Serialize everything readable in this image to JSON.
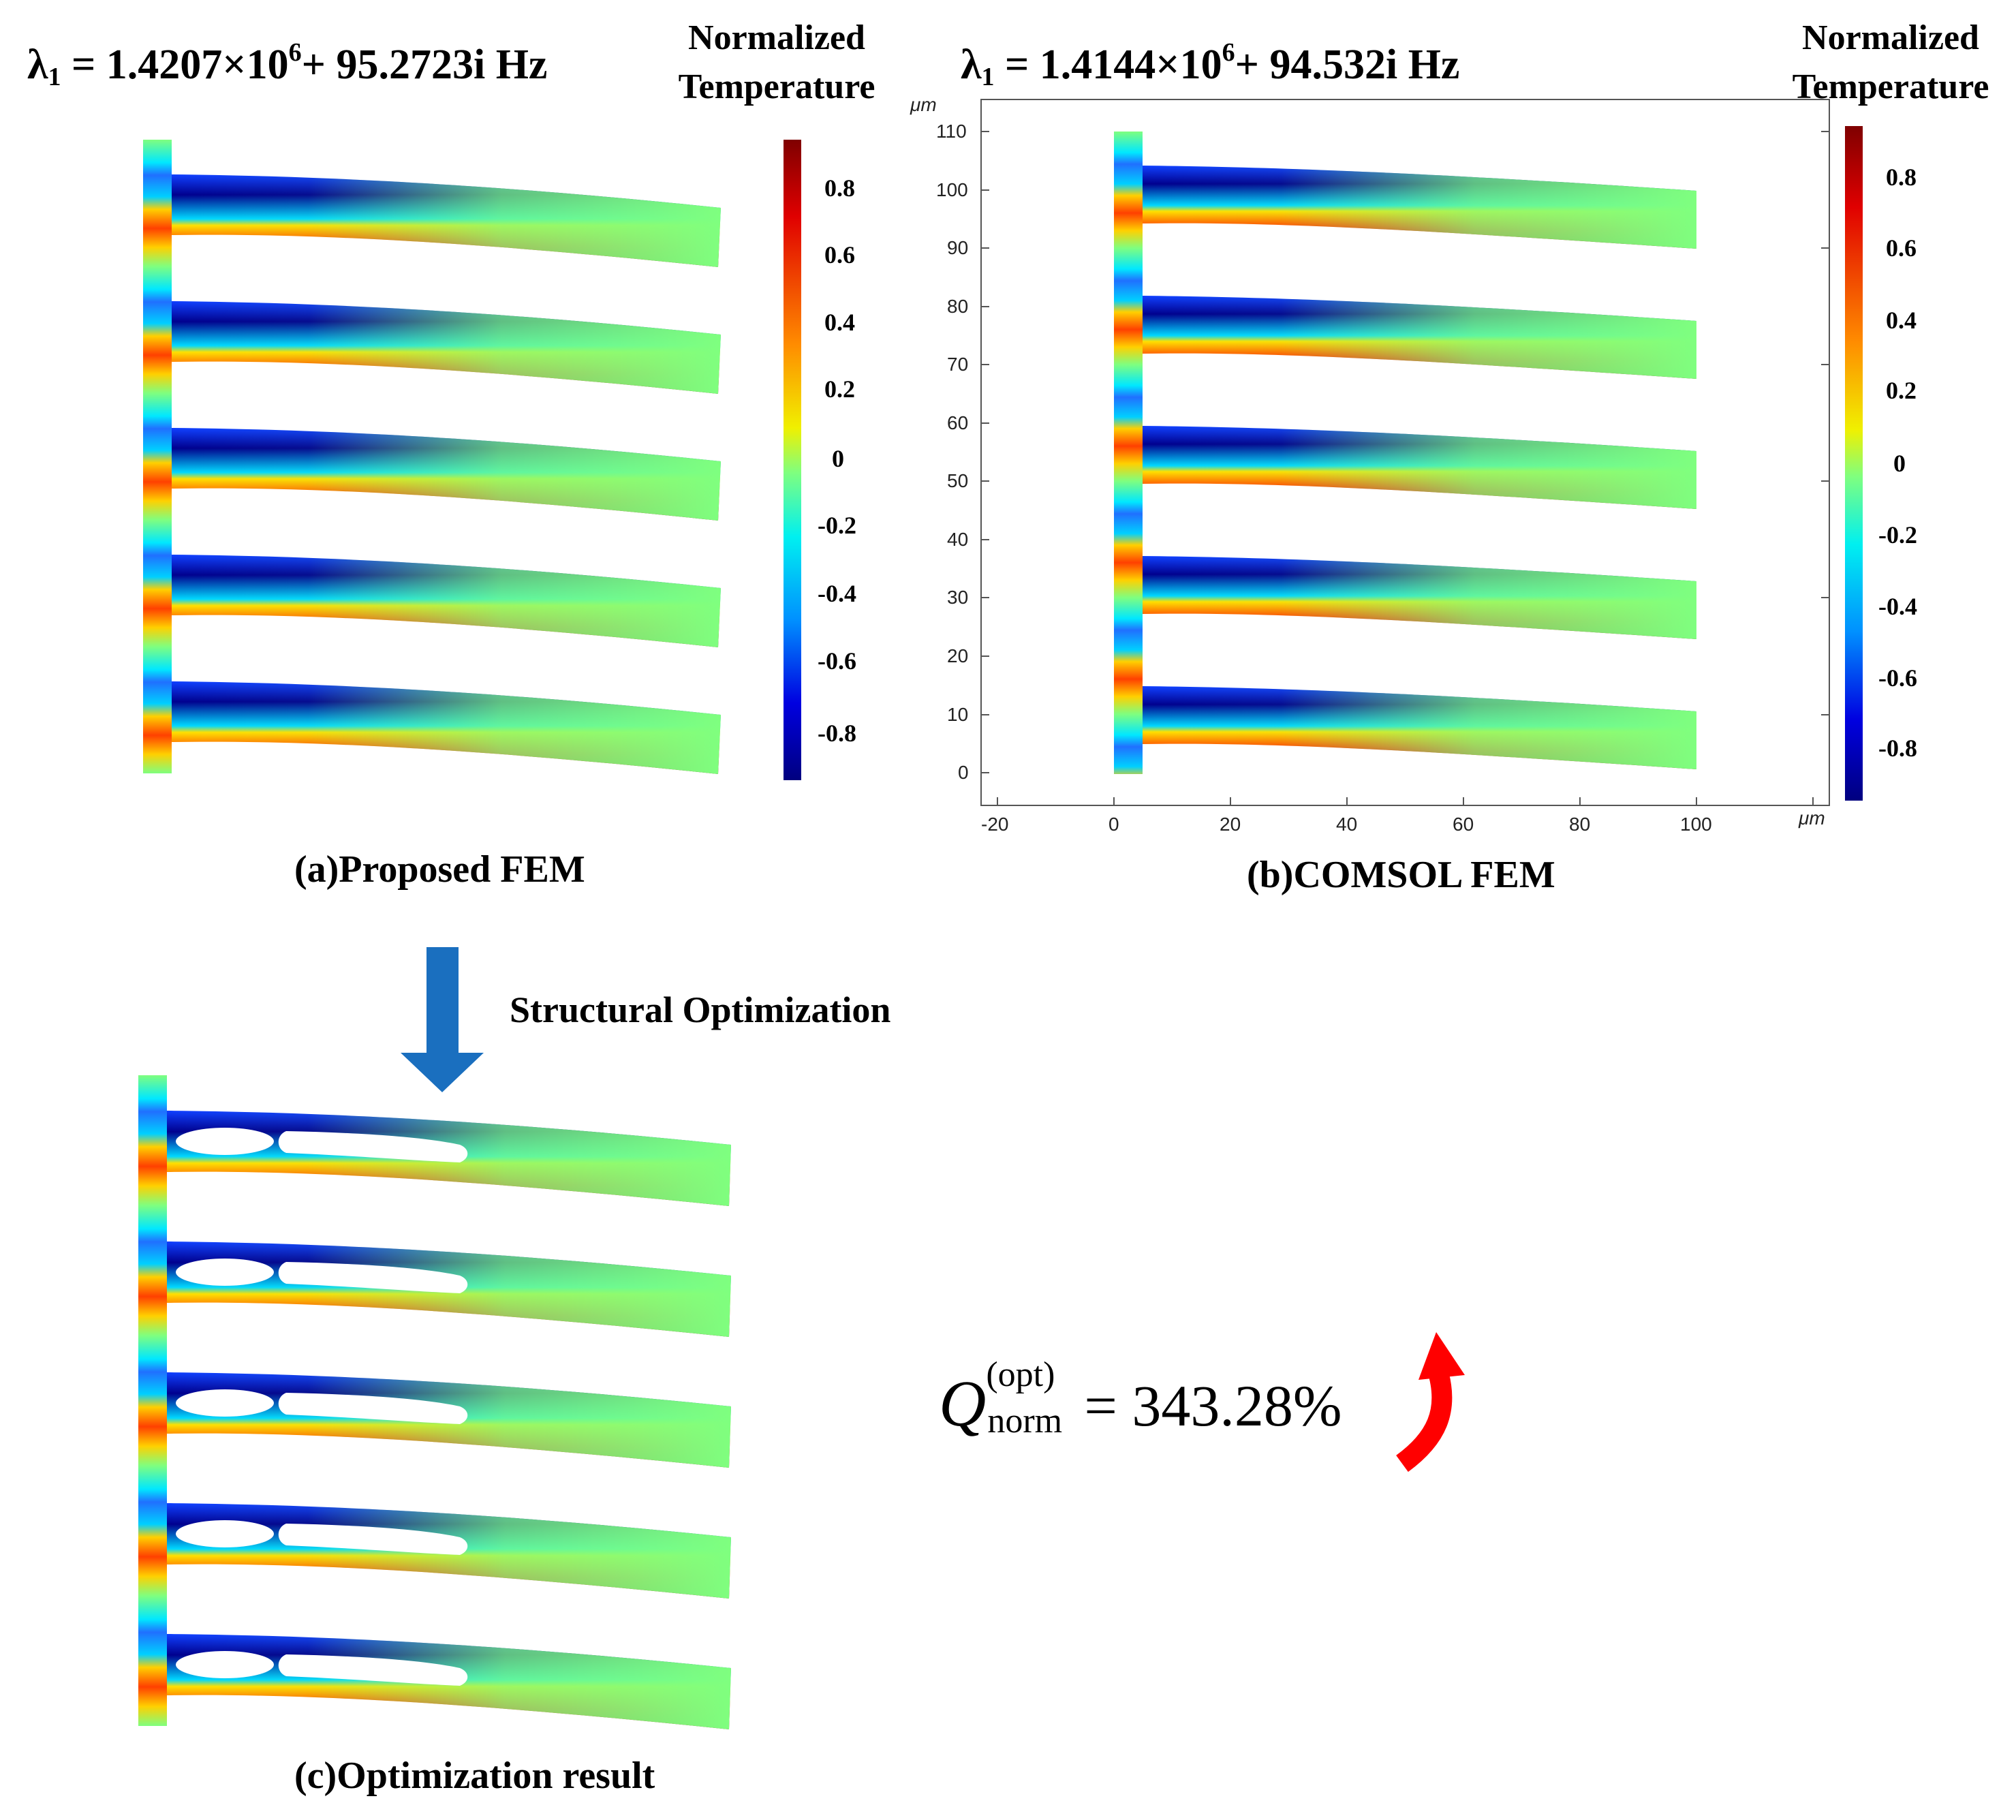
{
  "panel_a": {
    "eigenvalue": {
      "symbol": "λ",
      "index": "1",
      "eq": " = 1.4207×10",
      "exp": "6",
      "rest": "+ 95.2723i Hz"
    },
    "colorbar_title_1": "Normalized",
    "colorbar_title_2": "Temperature",
    "ticks": [
      "0.8",
      "0.6",
      "0.4",
      "0.2",
      "0",
      "-0.2",
      "-0.4",
      "-0.6",
      "-0.8"
    ],
    "caption": "(a)Proposed FEM"
  },
  "panel_b": {
    "eigenvalue": {
      "symbol": "λ",
      "index": "1",
      "eq": " = 1.4144×10",
      "exp": "6",
      "rest": "+ 94.532i Hz"
    },
    "colorbar_title_1": "Normalized",
    "colorbar_title_2": "Temperature",
    "ticks": [
      "0.8",
      "0.6",
      "0.4",
      "0.2",
      "0",
      "-0.2",
      "-0.4",
      "-0.6",
      "-0.8"
    ],
    "axis_unit": "μm",
    "y_ticks": [
      "110",
      "100",
      "90",
      "80",
      "70",
      "60",
      "50",
      "40",
      "30",
      "20",
      "10",
      "0"
    ],
    "x_ticks": [
      "-20",
      "0",
      "20",
      "40",
      "60",
      "80",
      "100"
    ],
    "caption": "(b)COMSOL FEM"
  },
  "arrow_label": "Structural Optimization",
  "panel_c": {
    "caption": "(c)Optimization result"
  },
  "q_result": {
    "symbol": "Q",
    "superscript": "(opt)",
    "subscript": "norm",
    "value": "= 343.28%"
  },
  "colors": {
    "arrow_blue": "#1a6fbf",
    "arrow_red": "#ff0000",
    "colormap": "jet"
  }
}
